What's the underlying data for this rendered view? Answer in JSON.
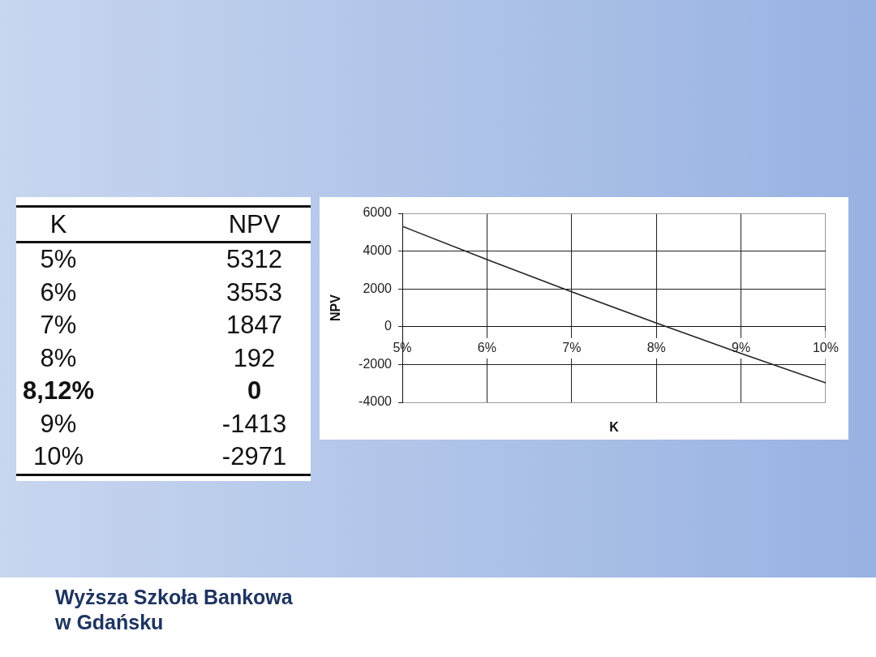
{
  "chart_data": [
    {
      "type": "other",
      "annotations": [
        "K",
        "NPV",
        "5%",
        "5312",
        "6%",
        "3553",
        "7%",
        "1847",
        "8%",
        "192",
        "8,12%",
        "0",
        "9%",
        "-1413",
        "10%",
        "-2971"
      ]
    },
    {
      "type": "line",
      "xlabel": "K",
      "ylabel": "NPV",
      "x": [
        5,
        6,
        7,
        8,
        8.12,
        9,
        10
      ],
      "values": [
        5312,
        3553,
        1847,
        192,
        0,
        -1413,
        -2971
      ],
      "color": "#222222",
      "xlim": [
        5,
        10
      ],
      "xticks": [
        {
          "value": 5,
          "label": "5%"
        },
        {
          "value": 6,
          "label": "6%"
        },
        {
          "value": 7,
          "label": "7%"
        },
        {
          "value": 8,
          "label": "8%"
        },
        {
          "value": 9,
          "label": "9%"
        },
        {
          "value": 10,
          "label": "10%"
        }
      ],
      "ylim": [
        -4000,
        6000
      ],
      "yticks": [
        -4000,
        -2000,
        0,
        2000,
        4000,
        6000
      ],
      "grid": true,
      "annotations": [
        "Wyższa Szkoła Bankowa\nw Gdańsku"
      ]
    }
  ]
}
